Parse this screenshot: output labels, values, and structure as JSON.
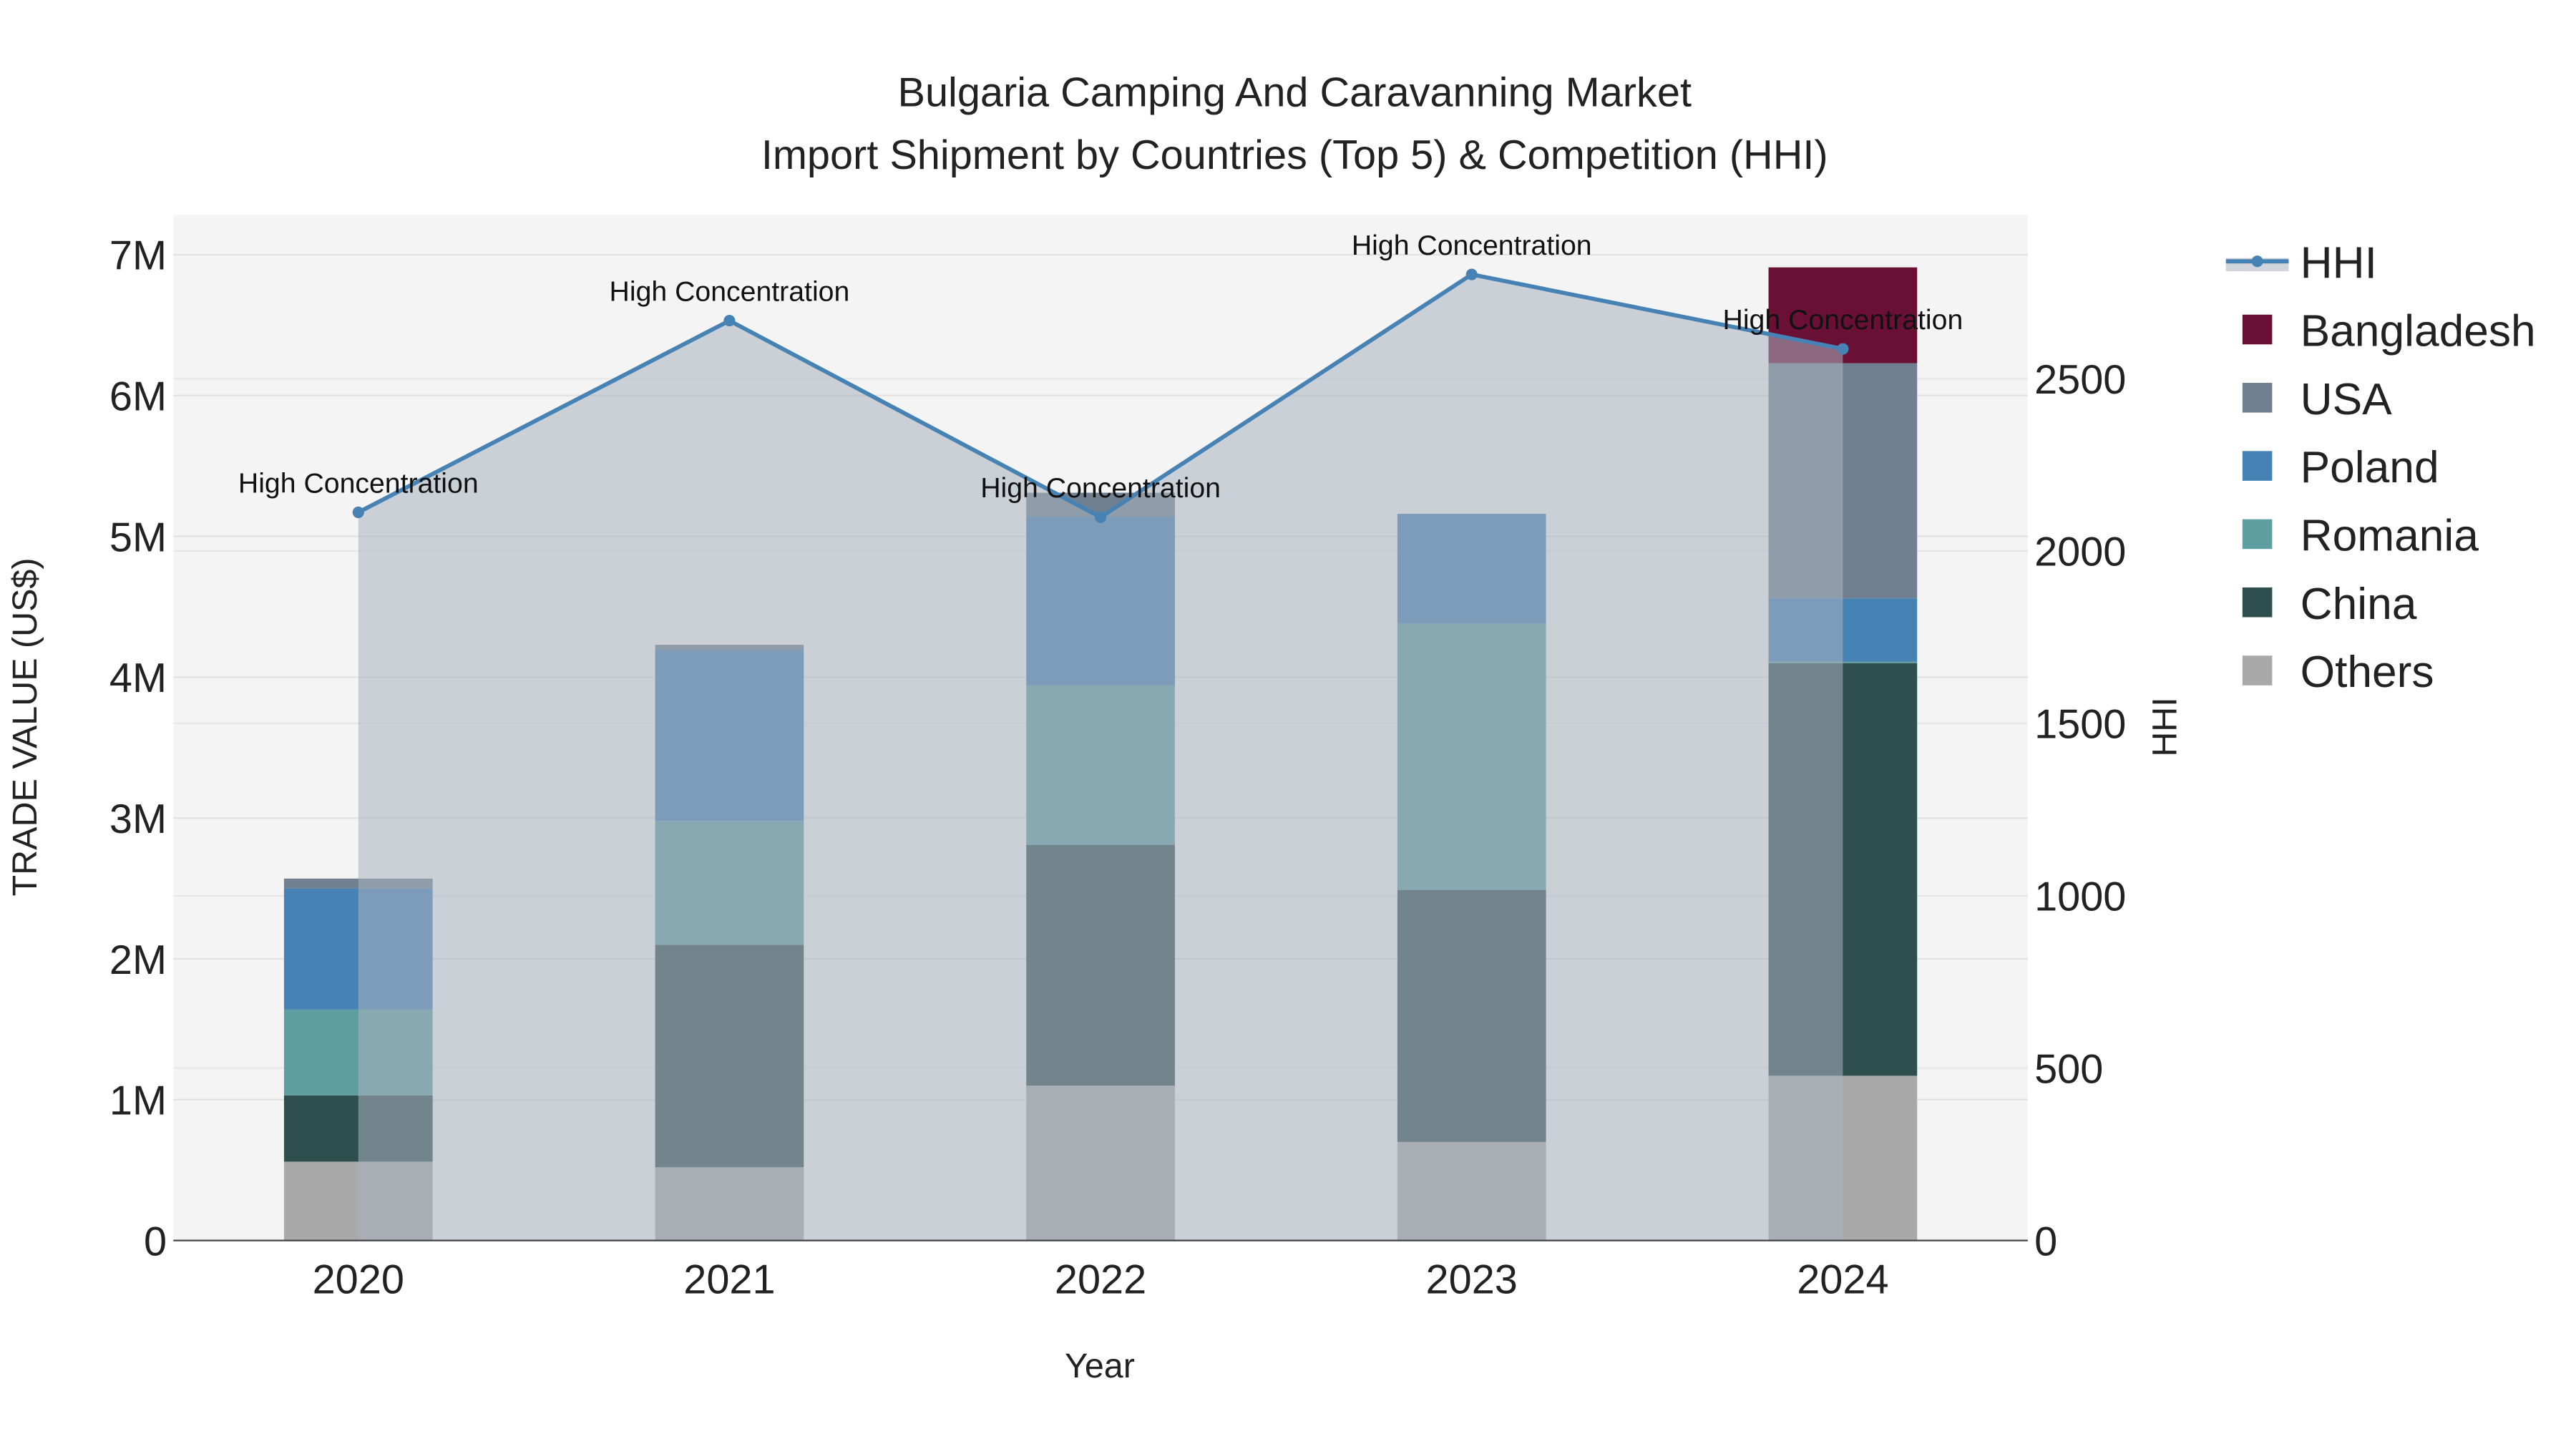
{
  "chart_data": {
    "type": "bar",
    "title": "Bulgaria Camping And Caravanning Market",
    "subtitle": "Import Shipment by Countries (Top 5) & Competition (HHI)",
    "xlabel": "Year",
    "ylabel": "TRADE VALUE (US$)",
    "y2label": "HHI",
    "categories": [
      "2020",
      "2021",
      "2022",
      "2023",
      "2024"
    ],
    "ylim": [
      0,
      7000000
    ],
    "y2lim": [
      0,
      2900
    ],
    "yticks": [
      {
        "v": 0,
        "label": "0"
      },
      {
        "v": 1000000,
        "label": "1M"
      },
      {
        "v": 2000000,
        "label": "2M"
      },
      {
        "v": 3000000,
        "label": "3M"
      },
      {
        "v": 4000000,
        "label": "4M"
      },
      {
        "v": 5000000,
        "label": "5M"
      },
      {
        "v": 6000000,
        "label": "6M"
      },
      {
        "v": 7000000,
        "label": "7M"
      }
    ],
    "y2ticks": [
      {
        "v": 0,
        "label": "0"
      },
      {
        "v": 500,
        "label": "500"
      },
      {
        "v": 1000,
        "label": "1000"
      },
      {
        "v": 1500,
        "label": "1500"
      },
      {
        "v": 2000,
        "label": "2000"
      },
      {
        "v": 2500,
        "label": "2500"
      }
    ],
    "stacked": true,
    "series": [
      {
        "name": "Others",
        "color": "#a9a9a9",
        "values": [
          560000,
          520000,
          1100000,
          700000,
          1170000
        ]
      },
      {
        "name": "China",
        "color": "#2f4f4f",
        "values": [
          470000,
          1580000,
          1710000,
          1790000,
          2930000
        ]
      },
      {
        "name": "Romania",
        "color": "#5f9ea0",
        "values": [
          610000,
          880000,
          1130000,
          1890000,
          10000
        ]
      },
      {
        "name": "Poland",
        "color": "#4682b4",
        "values": [
          860000,
          1210000,
          1200000,
          780000,
          450000
        ]
      },
      {
        "name": "USA",
        "color": "#708090",
        "values": [
          70000,
          40000,
          170000,
          0,
          1670000
        ]
      },
      {
        "name": "Bangladesh",
        "color": "#6b1035",
        "values": [
          0,
          0,
          0,
          0,
          680000
        ]
      }
    ],
    "hhi": {
      "name": "HHI",
      "color": "#4682b4",
      "values": [
        2112,
        2668,
        2098,
        2802,
        2586
      ],
      "annotations": [
        "High Concentration",
        "High Concentration",
        "High Concentration",
        "High Concentration",
        "High Concentration"
      ]
    },
    "legend": [
      "HHI",
      "Bangladesh",
      "USA",
      "Poland",
      "Romania",
      "China",
      "Others"
    ],
    "legend_position": "right",
    "grid": true
  }
}
